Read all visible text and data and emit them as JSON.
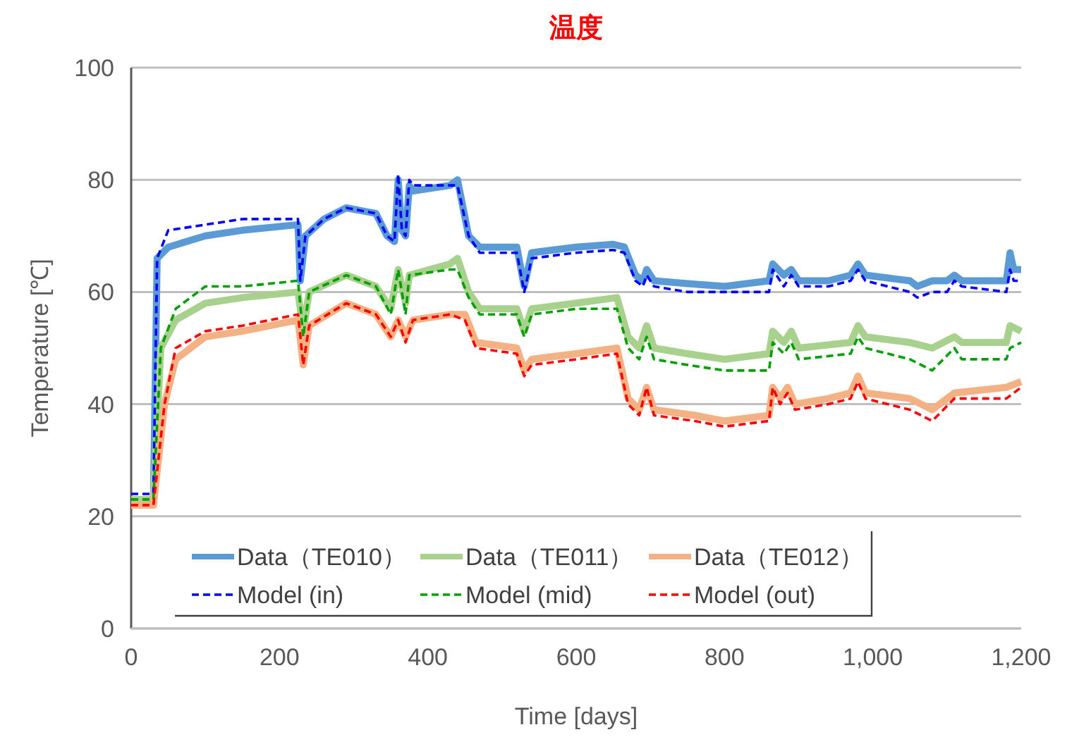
{
  "chart_data": {
    "type": "line",
    "title": "温度",
    "xlabel": "Time  [days]",
    "ylabel": "Temperature  [℃]",
    "xlim": [
      0,
      1200
    ],
    "xticks": [
      0,
      200,
      400,
      600,
      800,
      {
        "value": 1000,
        "label": "1,000"
      },
      {
        "value": 1200,
        "label": "1,200"
      }
    ],
    "ylim": [
      0,
      100
    ],
    "yticks": [
      0,
      20,
      40,
      60,
      80,
      100
    ],
    "grid": "y",
    "legend": "bottom",
    "marker": "none",
    "series": [
      {
        "name": "Data（TE010）",
        "color": "#5b9bd5",
        "line_style": "solid",
        "x": [
          0,
          30,
          35,
          50,
          100,
          150,
          225,
          228,
          235,
          260,
          290,
          330,
          345,
          355,
          360,
          365,
          370,
          375,
          380,
          430,
          440,
          455,
          470,
          520,
          530,
          540,
          600,
          650,
          665,
          680,
          690,
          695,
          705,
          750,
          800,
          860,
          865,
          880,
          890,
          900,
          940,
          970,
          980,
          990,
          1020,
          1050,
          1060,
          1080,
          1100,
          1110,
          1120,
          1180,
          1185,
          1190,
          1200
        ],
        "values": [
          23,
          23,
          66,
          68,
          70,
          71,
          72,
          62,
          70,
          73,
          75,
          74,
          70,
          69,
          80,
          71,
          70,
          79,
          78,
          79,
          80,
          70,
          68,
          68,
          61,
          67,
          68,
          68.5,
          68,
          63,
          62,
          64,
          62,
          61.5,
          61,
          62,
          65,
          63,
          64,
          62,
          62,
          63,
          65,
          63,
          62.5,
          62,
          61,
          62,
          62,
          63,
          62,
          62,
          67,
          64,
          64
        ]
      },
      {
        "name": "Data（TE011）",
        "color": "#a9d18e",
        "line_style": "solid",
        "x": [
          0,
          30,
          40,
          60,
          100,
          150,
          225,
          232,
          240,
          290,
          330,
          350,
          360,
          370,
          375,
          430,
          440,
          455,
          470,
          520,
          530,
          540,
          600,
          655,
          670,
          685,
          695,
          705,
          750,
          800,
          860,
          865,
          880,
          890,
          900,
          970,
          980,
          990,
          1050,
          1080,
          1110,
          1120,
          1180,
          1185,
          1200
        ],
        "values": [
          23,
          23,
          50,
          55,
          58,
          59,
          60,
          53,
          60,
          63,
          61,
          57,
          64,
          58,
          63,
          65,
          66,
          60,
          57,
          57,
          53,
          57,
          58,
          59,
          52,
          50,
          54,
          50,
          49,
          48,
          49,
          53,
          51,
          53,
          50,
          51,
          54,
          52,
          51,
          50,
          52,
          51,
          51,
          54,
          53
        ]
      },
      {
        "name": "Data（TE012）",
        "color": "#f4b183",
        "line_style": "solid",
        "x": [
          0,
          30,
          45,
          60,
          100,
          150,
          225,
          232,
          240,
          290,
          330,
          350,
          360,
          370,
          380,
          430,
          450,
          465,
          520,
          530,
          540,
          600,
          655,
          670,
          685,
          695,
          705,
          760,
          800,
          860,
          865,
          875,
          885,
          895,
          940,
          970,
          980,
          990,
          1050,
          1080,
          1110,
          1180,
          1200
        ],
        "values": [
          22,
          22,
          40,
          48,
          52,
          53,
          55,
          47,
          54,
          58,
          56,
          52,
          55,
          52,
          55,
          56,
          56,
          51,
          50,
          46,
          48,
          49,
          50,
          41,
          39,
          43,
          39,
          38,
          37,
          38,
          43,
          41,
          43,
          40,
          41,
          42,
          45,
          42,
          41,
          39,
          42,
          43,
          44
        ]
      },
      {
        "name": "Model (in)",
        "color": "#0000ff",
        "line_style": "dashed",
        "x": [
          0,
          30,
          35,
          50,
          100,
          150,
          225,
          228,
          235,
          260,
          290,
          330,
          345,
          355,
          360,
          365,
          370,
          375,
          380,
          430,
          440,
          455,
          470,
          520,
          530,
          540,
          600,
          650,
          665,
          680,
          690,
          695,
          705,
          750,
          800,
          860,
          865,
          880,
          890,
          900,
          940,
          970,
          980,
          990,
          1020,
          1050,
          1060,
          1080,
          1100,
          1110,
          1120,
          1180,
          1185,
          1190,
          1200
        ],
        "values": [
          24,
          24,
          66,
          71,
          72,
          73,
          73,
          62,
          70,
          73,
          75,
          74,
          70,
          69,
          81,
          71,
          70,
          80,
          79,
          79,
          79,
          70,
          67,
          67,
          60,
          66,
          67,
          67.5,
          67,
          62,
          61,
          63,
          61,
          60,
          60,
          60,
          64,
          61,
          63,
          61,
          61,
          62,
          64,
          62,
          61,
          60,
          59,
          60,
          60,
          62,
          61,
          60,
          64,
          62,
          62
        ]
      },
      {
        "name": "Model (mid)",
        "color": "#00a000",
        "line_style": "dashed",
        "x": [
          0,
          30,
          40,
          60,
          100,
          150,
          225,
          232,
          240,
          290,
          330,
          350,
          360,
          370,
          375,
          430,
          440,
          455,
          470,
          520,
          530,
          540,
          600,
          655,
          670,
          685,
          695,
          705,
          750,
          800,
          860,
          865,
          880,
          890,
          900,
          970,
          980,
          990,
          1050,
          1080,
          1110,
          1120,
          1180,
          1185,
          1200
        ],
        "values": [
          23,
          23,
          50,
          57,
          61,
          61,
          62,
          52,
          60,
          63,
          61,
          56,
          64,
          56,
          63,
          64,
          64,
          59,
          56,
          56,
          52,
          56,
          57,
          57,
          50,
          48,
          52,
          48,
          47,
          46,
          46,
          51,
          49,
          51,
          48,
          49,
          52,
          50,
          48,
          46,
          50,
          48,
          48,
          50,
          51
        ]
      },
      {
        "name": "Model (out)",
        "color": "#ff0000",
        "line_style": "dashed",
        "x": [
          0,
          30,
          45,
          60,
          100,
          150,
          225,
          232,
          240,
          290,
          330,
          350,
          360,
          370,
          380,
          430,
          450,
          465,
          520,
          530,
          540,
          600,
          655,
          670,
          685,
          695,
          705,
          760,
          800,
          860,
          865,
          875,
          885,
          895,
          940,
          970,
          980,
          990,
          1050,
          1080,
          1110,
          1180,
          1200
        ],
        "values": [
          22,
          22,
          40,
          50,
          53,
          54,
          56,
          47,
          54,
          58,
          56,
          52,
          55,
          51,
          55,
          56,
          55,
          50,
          49,
          45,
          47,
          48,
          49,
          40,
          38,
          43,
          38,
          37,
          36,
          37,
          43,
          40,
          42,
          39,
          40,
          41,
          44,
          41,
          39,
          37,
          41,
          41,
          43
        ]
      }
    ]
  }
}
